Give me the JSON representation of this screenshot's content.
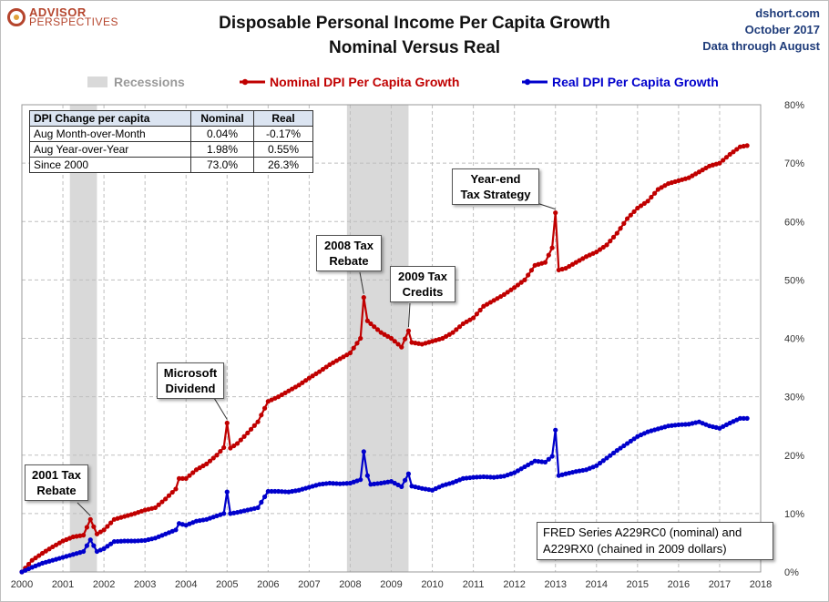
{
  "branding": {
    "logo_line1": "ADVISOR",
    "logo_line2": "PERSPECTIVES"
  },
  "header": {
    "title_line1": "Disposable Personal Income Per Capita Growth",
    "title_line2": "Nominal Versus Real",
    "source_site": "dshort.com",
    "source_date": "October 2017",
    "source_through": "Data through August"
  },
  "legend": {
    "recessions": "Recessions",
    "nominal": "Nominal DPI Per Capita Growth",
    "real": "Real DPI Per Capita Growth"
  },
  "colors": {
    "nominal": "#c00000",
    "real": "#0000cc",
    "recession": "#d9d9d9",
    "axis_text": "#333333"
  },
  "table": {
    "headers": [
      "DPI Change per capita",
      "Nominal",
      "Real"
    ],
    "rows": [
      [
        "Aug Month-over-Month",
        "0.04%",
        "-0.17%"
      ],
      [
        "Aug Year-over-Year",
        "1.98%",
        "0.55%"
      ],
      [
        "Since 2000",
        "73.0%",
        "26.3%"
      ]
    ]
  },
  "annotations": {
    "rebate_2001": [
      "2001 Tax",
      "Rebate"
    ],
    "microsoft": [
      "Microsoft",
      "Dividend"
    ],
    "rebate_2008": [
      "2008 Tax",
      "Rebate"
    ],
    "credits_2009": [
      "2009 Tax",
      "Credits"
    ],
    "year_end": [
      "Year-end",
      "Tax Strategy"
    ]
  },
  "source_note": [
    "FRED Series A229RC0 (nominal) and",
    "A229RX0 (chained in 2009 dollars)"
  ],
  "chart_data": {
    "type": "line",
    "title": "Disposable Personal Income Per Capita Growth",
    "subtitle": "Nominal Versus Real",
    "x_ticks": [
      "2000",
      "2001",
      "2002",
      "2003",
      "2004",
      "2005",
      "2006",
      "2007",
      "2008",
      "2009",
      "2010",
      "2011",
      "2012",
      "2013",
      "2014",
      "2015",
      "2016",
      "2017",
      "2018"
    ],
    "y_ticks": [
      "0%",
      "10%",
      "20%",
      "30%",
      "40%",
      "50%",
      "60%",
      "70%",
      "80%"
    ],
    "xlim": [
      2000,
      2018
    ],
    "ylim": [
      0,
      80
    ],
    "y_axis_side": "right",
    "grid": true,
    "legend_position": "top",
    "recessions": [
      [
        2001.17,
        2001.83
      ],
      [
        2007.92,
        2009.42
      ]
    ],
    "series": [
      {
        "name": "Nominal DPI Per Capita Growth",
        "color": "#c00000",
        "points": [
          [
            2000.0,
            0
          ],
          [
            2000.25,
            2
          ],
          [
            2000.5,
            3.2
          ],
          [
            2000.75,
            4.3
          ],
          [
            2001.0,
            5.3
          ],
          [
            2001.25,
            6
          ],
          [
            2001.5,
            6.3
          ],
          [
            2001.67,
            9
          ],
          [
            2001.83,
            6.5
          ],
          [
            2002.0,
            7.2
          ],
          [
            2002.25,
            9
          ],
          [
            2002.5,
            9.5
          ],
          [
            2002.75,
            10
          ],
          [
            2003.0,
            10.6
          ],
          [
            2003.25,
            11
          ],
          [
            2003.5,
            12.5
          ],
          [
            2003.75,
            14.2
          ],
          [
            2003.83,
            16
          ],
          [
            2004.0,
            16
          ],
          [
            2004.25,
            17.5
          ],
          [
            2004.5,
            18.5
          ],
          [
            2004.75,
            20
          ],
          [
            2004.92,
            21.3
          ],
          [
            2005.0,
            25.5
          ],
          [
            2005.08,
            21.2
          ],
          [
            2005.25,
            22
          ],
          [
            2005.5,
            23.8
          ],
          [
            2005.75,
            25.7
          ],
          [
            2006.0,
            29.2
          ],
          [
            2006.25,
            30
          ],
          [
            2006.5,
            31
          ],
          [
            2006.75,
            32
          ],
          [
            2007.0,
            33.2
          ],
          [
            2007.25,
            34.3
          ],
          [
            2007.5,
            35.5
          ],
          [
            2007.75,
            36.5
          ],
          [
            2008.0,
            37.5
          ],
          [
            2008.25,
            40
          ],
          [
            2008.33,
            47
          ],
          [
            2008.42,
            43
          ],
          [
            2008.5,
            42.5
          ],
          [
            2008.75,
            41
          ],
          [
            2009.0,
            40
          ],
          [
            2009.25,
            38.5
          ],
          [
            2009.42,
            41.3
          ],
          [
            2009.5,
            39.3
          ],
          [
            2009.75,
            39
          ],
          [
            2010.0,
            39.5
          ],
          [
            2010.25,
            40
          ],
          [
            2010.5,
            41
          ],
          [
            2010.75,
            42.5
          ],
          [
            2011.0,
            43.5
          ],
          [
            2011.25,
            45.5
          ],
          [
            2011.5,
            46.5
          ],
          [
            2011.75,
            47.5
          ],
          [
            2012.0,
            48.7
          ],
          [
            2012.25,
            50
          ],
          [
            2012.5,
            52.5
          ],
          [
            2012.75,
            53
          ],
          [
            2012.92,
            55.5
          ],
          [
            2013.0,
            61.5
          ],
          [
            2013.08,
            51.7
          ],
          [
            2013.25,
            52
          ],
          [
            2013.5,
            53
          ],
          [
            2013.75,
            54
          ],
          [
            2014.0,
            54.8
          ],
          [
            2014.25,
            56
          ],
          [
            2014.5,
            58
          ],
          [
            2014.75,
            60.5
          ],
          [
            2015.0,
            62.3
          ],
          [
            2015.25,
            63.5
          ],
          [
            2015.5,
            65.5
          ],
          [
            2015.75,
            66.5
          ],
          [
            2016.0,
            67
          ],
          [
            2016.25,
            67.5
          ],
          [
            2016.5,
            68.5
          ],
          [
            2016.75,
            69.5
          ],
          [
            2017.0,
            70
          ],
          [
            2017.25,
            71.5
          ],
          [
            2017.5,
            72.8
          ],
          [
            2017.67,
            73
          ]
        ]
      },
      {
        "name": "Real DPI Per Capita Growth",
        "color": "#0000cc",
        "points": [
          [
            2000.0,
            0
          ],
          [
            2000.25,
            0.8
          ],
          [
            2000.5,
            1.5
          ],
          [
            2000.75,
            2
          ],
          [
            2001.0,
            2.5
          ],
          [
            2001.25,
            3
          ],
          [
            2001.5,
            3.5
          ],
          [
            2001.67,
            5.5
          ],
          [
            2001.83,
            3.5
          ],
          [
            2002.0,
            4
          ],
          [
            2002.25,
            5.2
          ],
          [
            2002.5,
            5.3
          ],
          [
            2002.75,
            5.3
          ],
          [
            2003.0,
            5.4
          ],
          [
            2003.25,
            5.8
          ],
          [
            2003.5,
            6.5
          ],
          [
            2003.75,
            7.2
          ],
          [
            2003.83,
            8.3
          ],
          [
            2004.0,
            8
          ],
          [
            2004.25,
            8.7
          ],
          [
            2004.5,
            9
          ],
          [
            2004.75,
            9.6
          ],
          [
            2004.92,
            10
          ],
          [
            2005.0,
            13.7
          ],
          [
            2005.08,
            10
          ],
          [
            2005.25,
            10.2
          ],
          [
            2005.5,
            10.6
          ],
          [
            2005.75,
            11
          ],
          [
            2006.0,
            13.8
          ],
          [
            2006.25,
            13.8
          ],
          [
            2006.5,
            13.7
          ],
          [
            2006.75,
            14
          ],
          [
            2007.0,
            14.5
          ],
          [
            2007.25,
            15
          ],
          [
            2007.5,
            15.2
          ],
          [
            2007.75,
            15.1
          ],
          [
            2008.0,
            15.2
          ],
          [
            2008.25,
            15.8
          ],
          [
            2008.33,
            20.6
          ],
          [
            2008.42,
            16.5
          ],
          [
            2008.5,
            15
          ],
          [
            2008.75,
            15.2
          ],
          [
            2009.0,
            15.5
          ],
          [
            2009.25,
            14.6
          ],
          [
            2009.42,
            16.8
          ],
          [
            2009.5,
            14.7
          ],
          [
            2009.75,
            14.3
          ],
          [
            2010.0,
            14
          ],
          [
            2010.25,
            14.8
          ],
          [
            2010.5,
            15.3
          ],
          [
            2010.75,
            16
          ],
          [
            2011.0,
            16.2
          ],
          [
            2011.25,
            16.3
          ],
          [
            2011.5,
            16.2
          ],
          [
            2011.75,
            16.4
          ],
          [
            2012.0,
            17
          ],
          [
            2012.25,
            18
          ],
          [
            2012.5,
            19
          ],
          [
            2012.75,
            18.8
          ],
          [
            2012.92,
            19.8
          ],
          [
            2013.0,
            24.3
          ],
          [
            2013.08,
            16.5
          ],
          [
            2013.25,
            16.8
          ],
          [
            2013.5,
            17.2
          ],
          [
            2013.75,
            17.5
          ],
          [
            2014.0,
            18.2
          ],
          [
            2014.25,
            19.5
          ],
          [
            2014.5,
            20.8
          ],
          [
            2014.75,
            22
          ],
          [
            2015.0,
            23.2
          ],
          [
            2015.25,
            24
          ],
          [
            2015.5,
            24.5
          ],
          [
            2015.75,
            25
          ],
          [
            2016.0,
            25.2
          ],
          [
            2016.25,
            25.3
          ],
          [
            2016.5,
            25.7
          ],
          [
            2016.75,
            25
          ],
          [
            2017.0,
            24.6
          ],
          [
            2017.25,
            25.5
          ],
          [
            2017.5,
            26.3
          ],
          [
            2017.67,
            26.3
          ]
        ]
      }
    ]
  }
}
